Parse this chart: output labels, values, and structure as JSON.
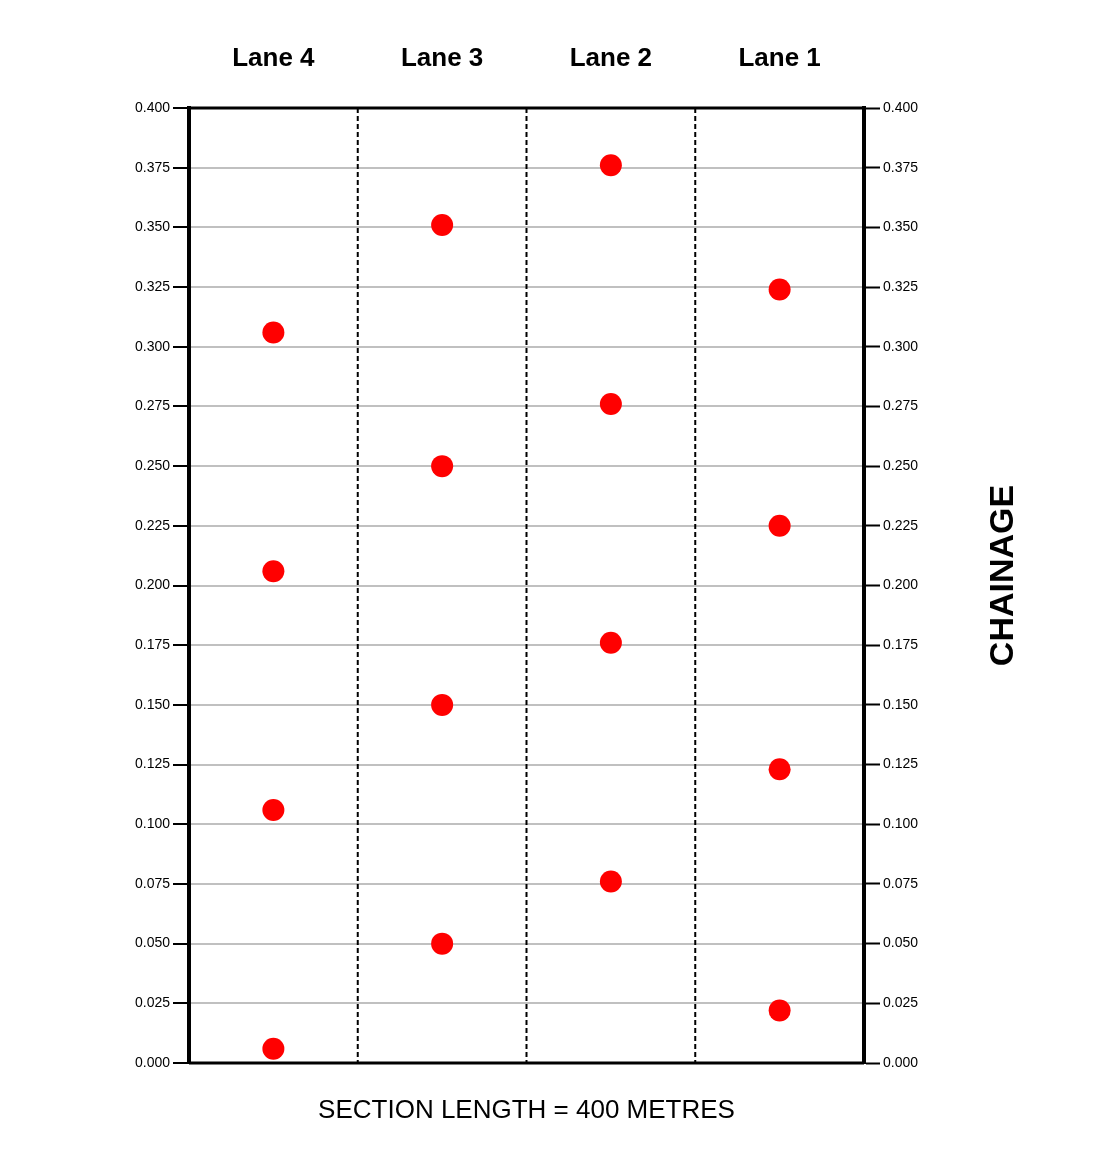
{
  "chart_data": {
    "type": "scatter",
    "xlabel": "SECTION LENGTH = 400 METRES",
    "ylabel": "CHAINAGE",
    "categories": [
      "Lane 4",
      "Lane 3",
      "Lane 2",
      "Lane 1"
    ],
    "series": [
      {
        "color": "#ff0000",
        "x": [
          "Lane 4",
          "Lane 4",
          "Lane 4",
          "Lane 4",
          "Lane 3",
          "Lane 3",
          "Lane 3",
          "Lane 3",
          "Lane 2",
          "Lane 2",
          "Lane 2",
          "Lane 2",
          "Lane 1",
          "Lane 1",
          "Lane 1",
          "Lane 1"
        ],
        "values": [
          0.306,
          0.206,
          0.106,
          0.006,
          0.351,
          0.25,
          0.15,
          0.05,
          0.376,
          0.276,
          0.176,
          0.076,
          0.324,
          0.225,
          0.123,
          0.022
        ]
      }
    ],
    "ylim": [
      0,
      0.4
    ],
    "yticks": [
      {
        "value": 0,
        "label": "0.000"
      },
      {
        "value": 0.025,
        "label": "0.025"
      },
      {
        "value": 0.05,
        "label": "0.050"
      },
      {
        "value": 0.075,
        "label": "0.075"
      },
      {
        "value": 0.1,
        "label": "0.100"
      },
      {
        "value": 0.125,
        "label": "0.125"
      },
      {
        "value": 0.15,
        "label": "0.150"
      },
      {
        "value": 0.175,
        "label": "0.175"
      },
      {
        "value": 0.2,
        "label": "0.200"
      },
      {
        "value": 0.225,
        "label": "0.225"
      },
      {
        "value": 0.25,
        "label": "0.250"
      },
      {
        "value": 0.275,
        "label": "0.275"
      },
      {
        "value": 0.3,
        "label": "0.300"
      },
      {
        "value": 0.325,
        "label": "0.325"
      },
      {
        "value": 0.35,
        "label": "0.350"
      },
      {
        "value": 0.375,
        "label": "0.375"
      },
      {
        "value": 0.4,
        "label": "0.400"
      }
    ],
    "y2lim": [
      0,
      0.4
    ],
    "y2ticks": [
      {
        "value": 0,
        "label": "0.000"
      },
      {
        "value": 0.025,
        "label": "0.025"
      },
      {
        "value": 0.05,
        "label": "0.050"
      },
      {
        "value": 0.075,
        "label": "0.075"
      },
      {
        "value": 0.1,
        "label": "0.100"
      },
      {
        "value": 0.125,
        "label": "0.125"
      },
      {
        "value": 0.15,
        "label": "0.150"
      },
      {
        "value": 0.175,
        "label": "0.175"
      },
      {
        "value": 0.2,
        "label": "0.200"
      },
      {
        "value": 0.225,
        "label": "0.225"
      },
      {
        "value": 0.25,
        "label": "0.250"
      },
      {
        "value": 0.275,
        "label": "0.275"
      },
      {
        "value": 0.3,
        "label": "0.300"
      },
      {
        "value": 0.325,
        "label": "0.325"
      },
      {
        "value": 0.35,
        "label": "0.350"
      },
      {
        "value": 0.375,
        "label": "0.375"
      },
      {
        "value": 0.4,
        "label": "0.400"
      }
    ],
    "grid": true,
    "legend": false,
    "marker": "circle"
  }
}
